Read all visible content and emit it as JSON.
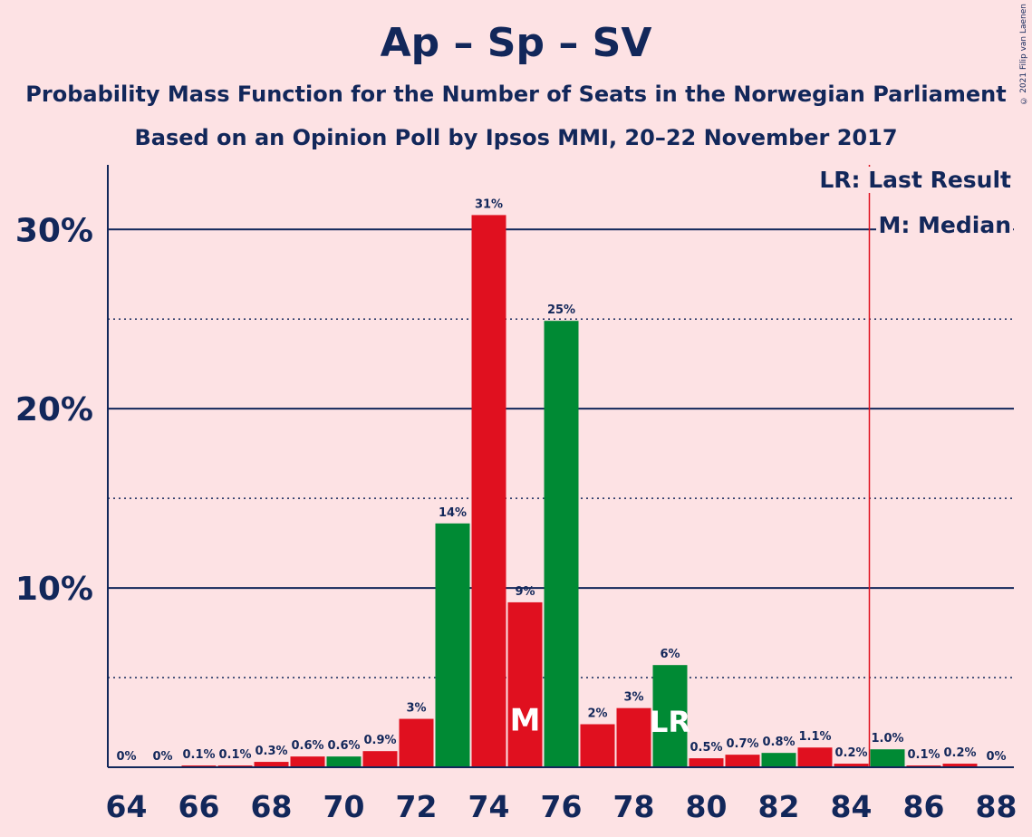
{
  "title": "Ap – Sp – SV",
  "subtitle1": "Probability Mass Function for the Number of Seats in the Norwegian Parliament",
  "subtitle2": "Based on an Opinion Poll by Ipsos MMI, 20–22 November 2017",
  "copyright": "© 2021 Filip van Laenen",
  "legend": {
    "last_result": "LR: Last Result",
    "median": "M: Median"
  },
  "colors": {
    "red": "#e0101f",
    "green": "#008a34",
    "navy": "#12275a",
    "background": "#fde2e4",
    "lr_line": "#e0101f"
  },
  "chart_data": {
    "type": "bar",
    "x": [
      64,
      65,
      66,
      67,
      68,
      69,
      70,
      71,
      72,
      73,
      74,
      75,
      76,
      77,
      78,
      79,
      80,
      81,
      82,
      83,
      84,
      85,
      86,
      87,
      88
    ],
    "values": [
      0,
      0,
      0.1,
      0.1,
      0.3,
      0.6,
      0.6,
      0.9,
      2.7,
      13.6,
      30.8,
      9.2,
      24.9,
      2.4,
      3.3,
      5.7,
      0.5,
      0.7,
      0.8,
      1.1,
      0.2,
      1.0,
      0.1,
      0.2,
      0
    ],
    "labels": [
      "0%",
      "0%",
      "0.1%",
      "0.1%",
      "0.3%",
      "0.6%",
      "0.6%",
      "0.9%",
      "3%",
      "14%",
      "31%",
      "9%",
      "25%",
      "2%",
      "3%",
      "6%",
      "0.5%",
      "0.7%",
      "0.8%",
      "1.1%",
      "0.2%",
      "1.0%",
      "0.1%",
      "0.2%",
      "0%"
    ],
    "bar_colors": [
      "red",
      "red",
      "red",
      "red",
      "red",
      "red",
      "green",
      "red",
      "red",
      "green",
      "red",
      "red",
      "green",
      "red",
      "red",
      "green",
      "red",
      "red",
      "green",
      "red",
      "red",
      "green",
      "red",
      "red",
      "red"
    ],
    "x_ticks": [
      64,
      66,
      68,
      70,
      72,
      74,
      76,
      78,
      80,
      82,
      84,
      86,
      88
    ],
    "y_ticks": [
      10,
      20,
      30
    ],
    "y_tick_labels": [
      "10%",
      "20%",
      "30%"
    ],
    "y_minor_ticks": [
      5,
      15,
      25
    ],
    "ylim": [
      0,
      33.6
    ],
    "median": 75,
    "median_label": "M",
    "last_result": 79,
    "last_result_label": "LR",
    "last_result_line_x": 84.5
  }
}
